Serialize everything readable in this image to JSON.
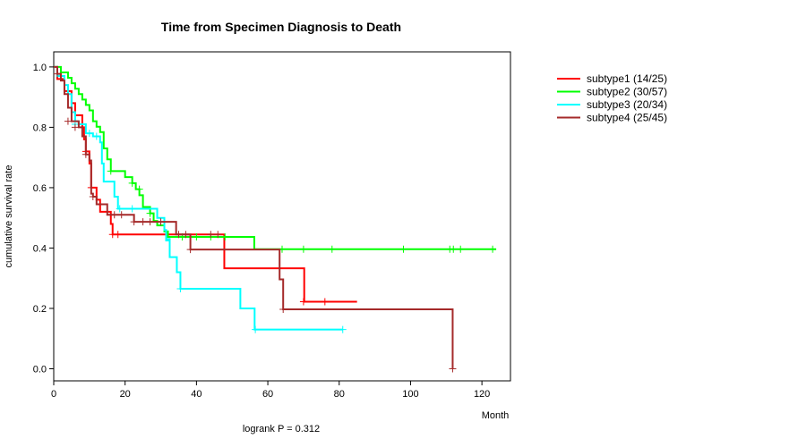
{
  "chart_data": {
    "type": "line",
    "subtype": "kaplan-meier",
    "title": "Time from Specimen Diagnosis to Death",
    "xlabel": "Month",
    "ylabel": "cumulative survival rate",
    "xlim": [
      0,
      128
    ],
    "ylim": [
      -0.04,
      1.05
    ],
    "xticks": [
      0,
      20,
      40,
      60,
      80,
      100,
      120
    ],
    "yticks": [
      0.0,
      0.2,
      0.4,
      0.6,
      0.8,
      1.0
    ],
    "ytick_labels": [
      "0.0",
      "0.2",
      "0.4",
      "0.6",
      "0.8",
      "1.0"
    ],
    "footnote": "logrank P = 0.312",
    "legend_position": "right",
    "series": [
      {
        "name": "subtype1 (14/25)",
        "color": "#ff0000",
        "steps": [
          [
            0,
            1.0
          ],
          [
            1,
            0.96
          ],
          [
            3,
            0.92
          ],
          [
            5,
            0.88
          ],
          [
            6,
            0.84
          ],
          [
            8,
            0.8
          ],
          [
            8.5,
            0.76
          ],
          [
            9,
            0.72
          ],
          [
            10,
            0.68
          ],
          [
            10.5,
            0.6
          ],
          [
            12,
            0.56
          ],
          [
            13,
            0.52
          ],
          [
            16,
            0.48
          ],
          [
            16.5,
            0.445
          ],
          [
            47.5,
            0.445
          ],
          [
            47.8,
            0.333
          ],
          [
            70,
            0.333
          ],
          [
            70.2,
            0.222
          ],
          [
            85,
            0.222
          ]
        ],
        "censor": [
          [
            9,
            0.72
          ],
          [
            10.5,
            0.6
          ],
          [
            16.5,
            0.445
          ],
          [
            18,
            0.445
          ],
          [
            70,
            0.222
          ],
          [
            76,
            0.222
          ]
        ]
      },
      {
        "name": "subtype2 (30/57)",
        "color": "#00ff00",
        "steps": [
          [
            0,
            1.0
          ],
          [
            2,
            0.982
          ],
          [
            4,
            0.964
          ],
          [
            5,
            0.946
          ],
          [
            6,
            0.928
          ],
          [
            7,
            0.91
          ],
          [
            8,
            0.892
          ],
          [
            9,
            0.874
          ],
          [
            10,
            0.856
          ],
          [
            11,
            0.82
          ],
          [
            12,
            0.802
          ],
          [
            13,
            0.784
          ],
          [
            14,
            0.73
          ],
          [
            15,
            0.694
          ],
          [
            16,
            0.655
          ],
          [
            20,
            0.635
          ],
          [
            22,
            0.615
          ],
          [
            23,
            0.595
          ],
          [
            24,
            0.575
          ],
          [
            25,
            0.536
          ],
          [
            27,
            0.515
          ],
          [
            28,
            0.49
          ],
          [
            29,
            0.475
          ],
          [
            31,
            0.455
          ],
          [
            32,
            0.437
          ],
          [
            56,
            0.437
          ],
          [
            56.2,
            0.396
          ],
          [
            124,
            0.396
          ]
        ],
        "censor": [
          [
            16,
            0.655
          ],
          [
            22,
            0.615
          ],
          [
            24,
            0.595
          ],
          [
            27,
            0.515
          ],
          [
            36,
            0.437
          ],
          [
            40,
            0.437
          ],
          [
            44,
            0.437
          ],
          [
            48,
            0.437
          ],
          [
            64,
            0.396
          ],
          [
            70,
            0.396
          ],
          [
            78,
            0.396
          ],
          [
            98,
            0.396
          ],
          [
            111,
            0.396
          ],
          [
            112,
            0.396
          ],
          [
            114,
            0.396
          ],
          [
            123,
            0.396
          ]
        ]
      },
      {
        "name": "subtype3 (20/34)",
        "color": "#00ffff",
        "steps": [
          [
            0,
            1.0
          ],
          [
            1,
            0.97
          ],
          [
            3,
            0.94
          ],
          [
            4,
            0.91
          ],
          [
            5,
            0.85
          ],
          [
            6,
            0.82
          ],
          [
            7,
            0.81
          ],
          [
            9,
            0.78
          ],
          [
            11,
            0.77
          ],
          [
            13,
            0.75
          ],
          [
            13.5,
            0.68
          ],
          [
            14,
            0.62
          ],
          [
            17,
            0.57
          ],
          [
            18,
            0.53
          ],
          [
            28,
            0.53
          ],
          [
            29,
            0.5
          ],
          [
            31,
            0.46
          ],
          [
            31.5,
            0.425
          ],
          [
            32,
            0.43
          ],
          [
            32.5,
            0.37
          ],
          [
            34.5,
            0.32
          ],
          [
            35.5,
            0.265
          ],
          [
            52,
            0.265
          ],
          [
            52.3,
            0.2
          ],
          [
            56,
            0.2
          ],
          [
            56.3,
            0.13
          ],
          [
            81,
            0.13
          ]
        ],
        "censor": [
          [
            6,
            0.81
          ],
          [
            10,
            0.78
          ],
          [
            12,
            0.77
          ],
          [
            18.5,
            0.53
          ],
          [
            22,
            0.53
          ],
          [
            35.5,
            0.265
          ],
          [
            56.5,
            0.13
          ],
          [
            81,
            0.13
          ]
        ]
      },
      {
        "name": "subtype4 (25/45)",
        "color": "#a52a2a",
        "steps": [
          [
            0,
            1.0
          ],
          [
            1,
            0.977
          ],
          [
            2,
            0.955
          ],
          [
            3,
            0.91
          ],
          [
            4,
            0.865
          ],
          [
            5,
            0.82
          ],
          [
            7,
            0.8
          ],
          [
            8,
            0.77
          ],
          [
            9,
            0.71
          ],
          [
            10,
            0.69
          ],
          [
            10.5,
            0.58
          ],
          [
            11,
            0.57
          ],
          [
            12,
            0.545
          ],
          [
            15,
            0.51
          ],
          [
            22,
            0.51
          ],
          [
            22.5,
            0.487
          ],
          [
            34,
            0.487
          ],
          [
            34.3,
            0.445
          ],
          [
            36,
            0.445
          ],
          [
            38,
            0.445
          ],
          [
            38.3,
            0.395
          ],
          [
            63,
            0.395
          ],
          [
            63.3,
            0.296
          ],
          [
            64,
            0.296
          ],
          [
            64.3,
            0.197
          ],
          [
            111.5,
            0.197
          ],
          [
            111.8,
            0.0
          ]
        ],
        "censor": [
          [
            1,
            0.977
          ],
          [
            4,
            0.82
          ],
          [
            6,
            0.8
          ],
          [
            9,
            0.71
          ],
          [
            11,
            0.57
          ],
          [
            17,
            0.51
          ],
          [
            19,
            0.51
          ],
          [
            22.5,
            0.487
          ],
          [
            25,
            0.487
          ],
          [
            27,
            0.487
          ],
          [
            30,
            0.487
          ],
          [
            35,
            0.445
          ],
          [
            37,
            0.445
          ],
          [
            38.3,
            0.395
          ],
          [
            44,
            0.445
          ],
          [
            46,
            0.445
          ],
          [
            64.3,
            0.197
          ],
          [
            111.8,
            0.0
          ]
        ]
      }
    ]
  }
}
